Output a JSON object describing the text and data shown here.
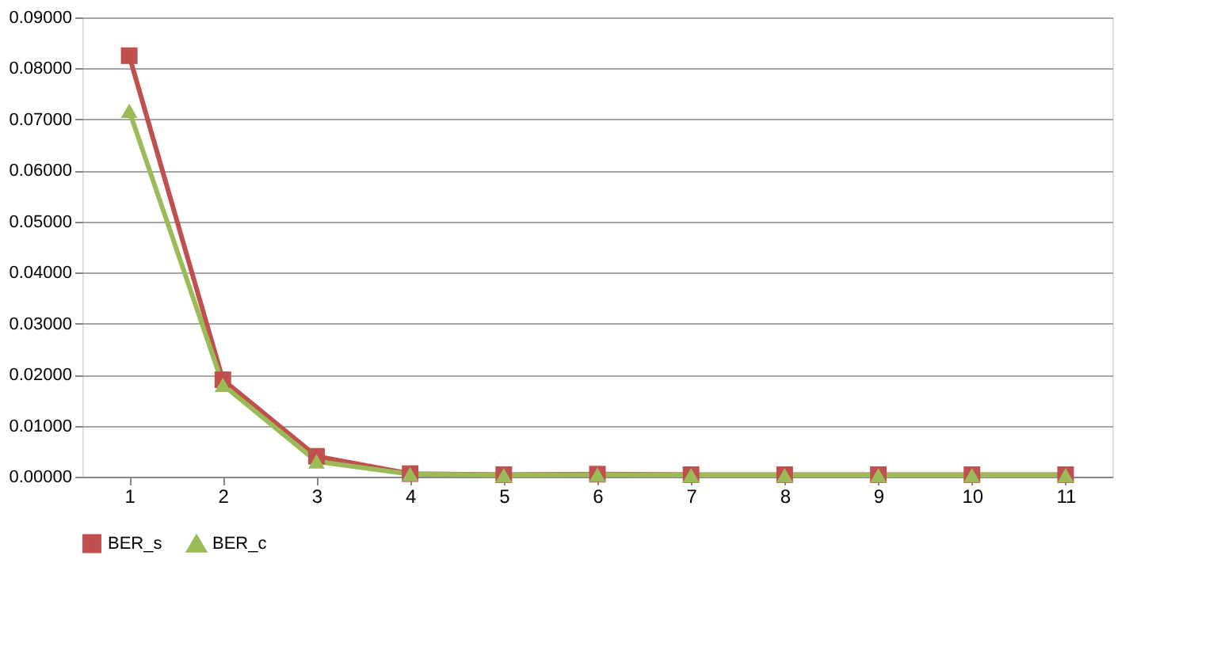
{
  "chart_data": {
    "type": "line",
    "categories": [
      "1",
      "2",
      "3",
      "4",
      "5",
      "6",
      "7",
      "8",
      "9",
      "10",
      "11"
    ],
    "series": [
      {
        "name": "BER_s",
        "color": "#c0504d",
        "marker": "square",
        "values": [
          0.0825,
          0.019,
          0.004,
          0.0006,
          0.0004,
          0.0005,
          0.0004,
          0.0004,
          0.0004,
          0.0004,
          0.0004
        ]
      },
      {
        "name": "BER_c",
        "color": "#9bbb59",
        "marker": "triangle",
        "values": [
          0.0717,
          0.018,
          0.003,
          0.0005,
          0.0003,
          0.0004,
          0.0003,
          0.0003,
          0.0003,
          0.0003,
          0.0003
        ]
      }
    ],
    "ylim": [
      0,
      0.09
    ],
    "yticks": [
      {
        "value": 0,
        "label": "0.00000"
      },
      {
        "value": 0.01,
        "label": "0.01000"
      },
      {
        "value": 0.02,
        "label": "0.02000"
      },
      {
        "value": 0.03,
        "label": "0.03000"
      },
      {
        "value": 0.04,
        "label": "0.04000"
      },
      {
        "value": 0.05,
        "label": "0.05000"
      },
      {
        "value": 0.06,
        "label": "0.06000"
      },
      {
        "value": 0.07,
        "label": "0.07000"
      },
      {
        "value": 0.08,
        "label": "0.08000"
      },
      {
        "value": 0.09,
        "label": "0.09000"
      }
    ],
    "grid": "y",
    "legend": "bottom",
    "line_style": "solid"
  }
}
